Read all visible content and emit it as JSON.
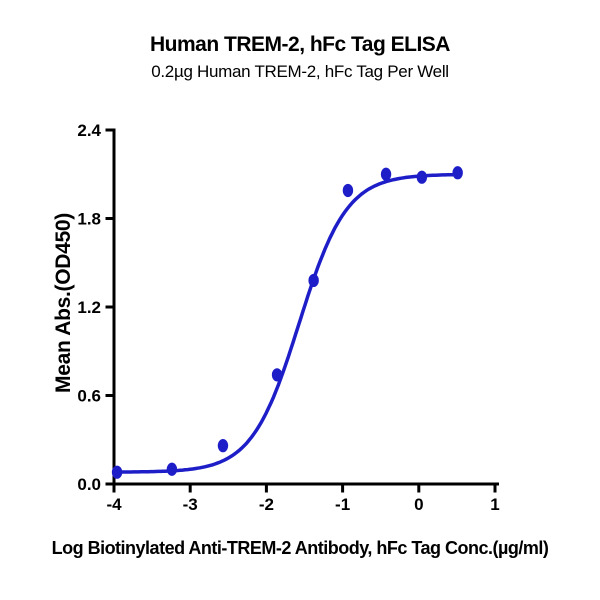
{
  "chart_data": {
    "type": "scatter",
    "title": "Human TREM-2, hFc Tag ELISA",
    "subtitle": "0.2µg Human TREM-2, hFc Tag Per Well",
    "xlabel": "Log Biotinylated Anti-TREM-2 Antibody, hFc Tag Conc.(µg/ml)",
    "ylabel": "Mean Abs.(OD450)",
    "xlim": [
      -4,
      1
    ],
    "ylim": [
      0,
      2.4
    ],
    "x_ticks": [
      -4,
      -3,
      -2,
      -1,
      0,
      1
    ],
    "y_ticks": [
      0,
      0.6,
      1.2,
      1.8,
      2.4
    ],
    "y_tick_labels": [
      "0.0",
      "0.6",
      "1.2",
      "1.8",
      "2.4"
    ],
    "grid": false,
    "legend": "none",
    "axis_color": "#000000",
    "series": [
      {
        "name": "Biotinylated Anti-TREM-2 Antibody, hFc Tag",
        "color": "#1e1ec8",
        "marker": "oval",
        "points": [
          {
            "x": -3.96,
            "y": 0.08
          },
          {
            "x": -3.24,
            "y": 0.1
          },
          {
            "x": -2.57,
            "y": 0.26
          },
          {
            "x": -1.86,
            "y": 0.74
          },
          {
            "x": -1.38,
            "y": 1.38
          },
          {
            "x": -0.93,
            "y": 1.99
          },
          {
            "x": -0.43,
            "y": 2.1
          },
          {
            "x": 0.04,
            "y": 2.08
          },
          {
            "x": 0.51,
            "y": 2.11
          }
        ],
        "fit_4pl": {
          "bottom": 0.08,
          "top": 2.1,
          "logEC50": -1.57,
          "hill": 1.4
        },
        "curve_x_range": [
          -4.0,
          0.51
        ]
      }
    ]
  }
}
